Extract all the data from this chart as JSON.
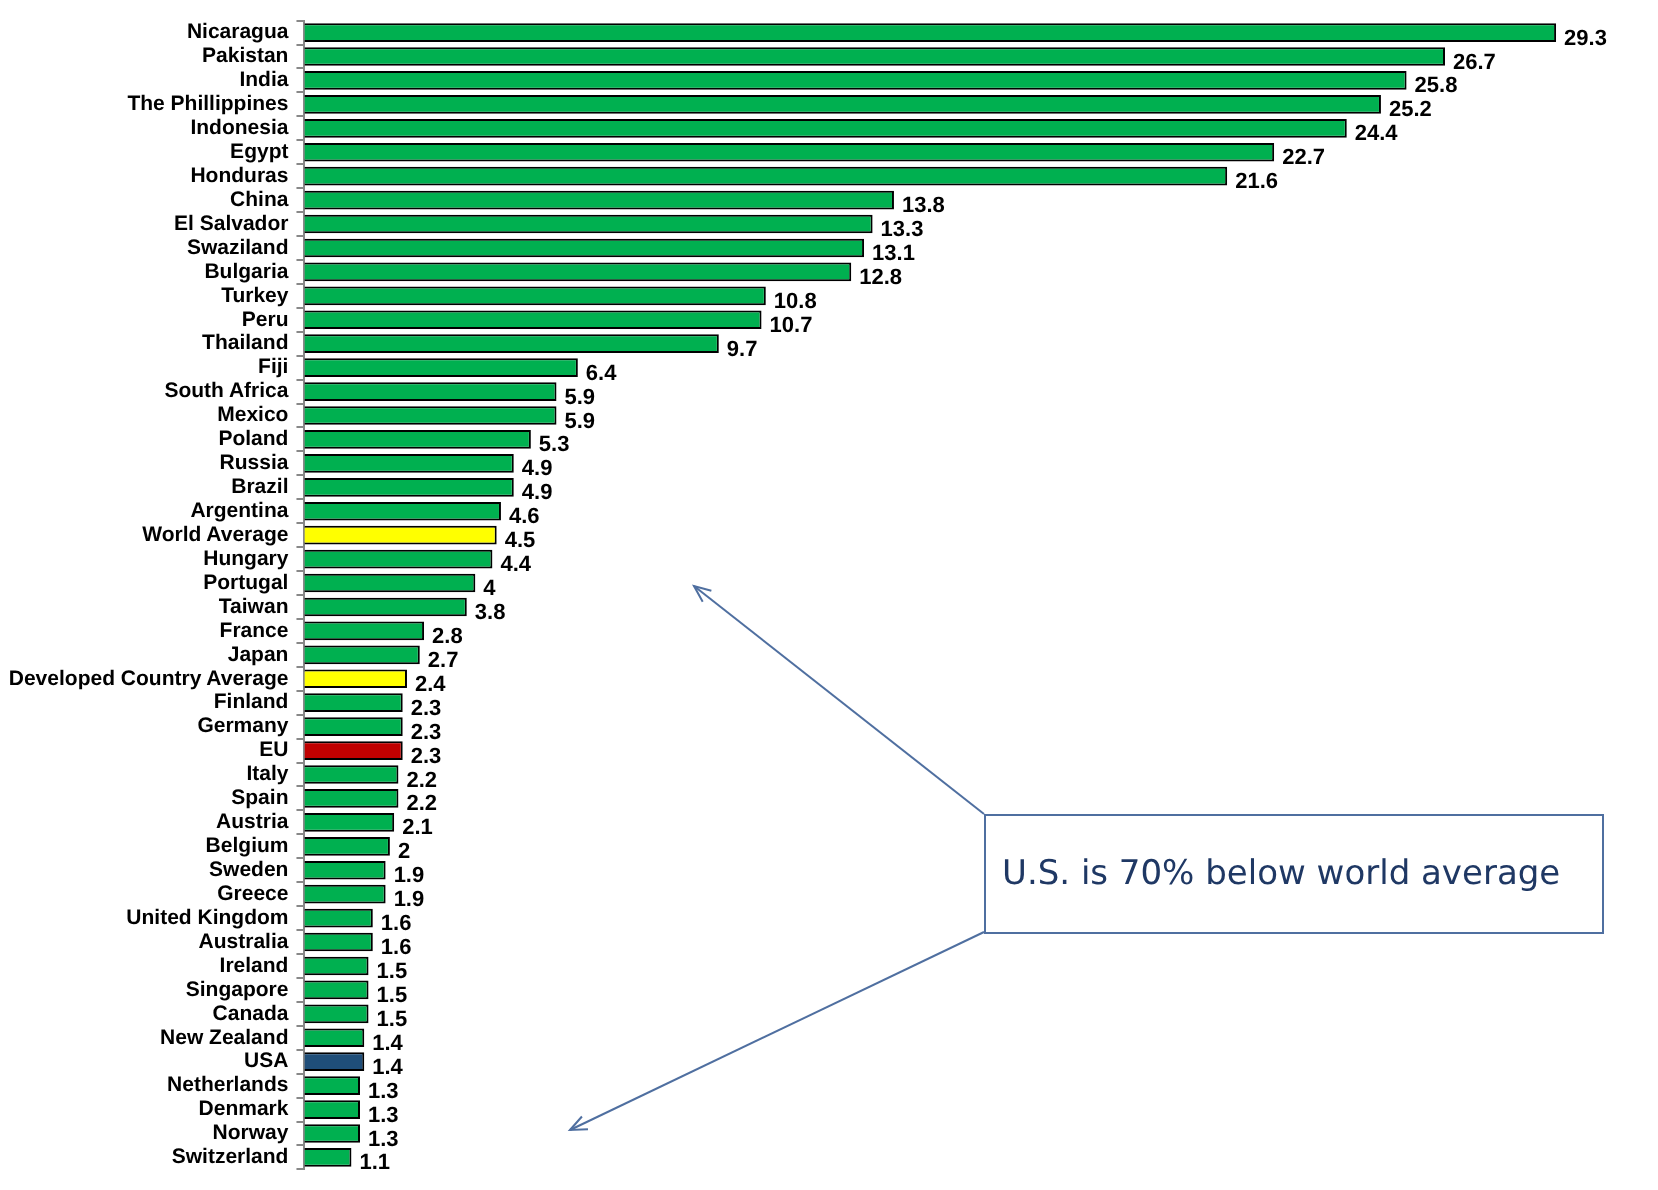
{
  "chart_data": {
    "type": "bar",
    "orientation": "horizontal",
    "categories": [
      "Nicaragua",
      "Pakistan",
      "India",
      "The Phillippines",
      "Indonesia",
      "Egypt",
      "Honduras",
      "China",
      "El Salvador",
      "Swaziland",
      "Bulgaria",
      "Turkey",
      "Peru",
      "Thailand",
      "Fiji",
      "South Africa",
      "Mexico",
      "Poland",
      "Russia",
      "Brazil",
      "Argentina",
      "World Average",
      "Hungary",
      "Portugal",
      "Taiwan",
      "France",
      "Japan",
      "Developed Country Average",
      "Finland",
      "Germany",
      "EU",
      "Italy",
      "Spain",
      "Austria",
      "Belgium",
      "Sweden",
      "Greece",
      "United Kingdom",
      "Australia",
      "Ireland",
      "Singapore",
      "Canada",
      "New Zealand",
      "USA",
      "Netherlands",
      "Denmark",
      "Norway",
      "Switzerland"
    ],
    "values": [
      29.3,
      26.7,
      25.8,
      25.2,
      24.4,
      22.7,
      21.6,
      13.8,
      13.3,
      13.1,
      12.8,
      10.8,
      10.7,
      9.7,
      6.4,
      5.9,
      5.9,
      5.3,
      4.9,
      4.9,
      4.6,
      4.5,
      4.4,
      4,
      3.8,
      2.8,
      2.7,
      2.4,
      2.3,
      2.3,
      2.3,
      2.2,
      2.2,
      2.1,
      2,
      1.9,
      1.9,
      1.6,
      1.6,
      1.5,
      1.5,
      1.5,
      1.4,
      1.4,
      1.3,
      1.3,
      1.3,
      1.1
    ],
    "colors": [
      "#00b050",
      "#00b050",
      "#00b050",
      "#00b050",
      "#00b050",
      "#00b050",
      "#00b050",
      "#00b050",
      "#00b050",
      "#00b050",
      "#00b050",
      "#00b050",
      "#00b050",
      "#00b050",
      "#00b050",
      "#00b050",
      "#00b050",
      "#00b050",
      "#00b050",
      "#00b050",
      "#00b050",
      "#ffff00",
      "#00b050",
      "#00b050",
      "#00b050",
      "#00b050",
      "#00b050",
      "#ffff00",
      "#00b050",
      "#00b050",
      "#c00000",
      "#00b050",
      "#00b050",
      "#00b050",
      "#00b050",
      "#00b050",
      "#00b050",
      "#00b050",
      "#00b050",
      "#00b050",
      "#00b050",
      "#00b050",
      "#00b050",
      "#1f4e79",
      "#00b050",
      "#00b050",
      "#00b050",
      "#00b050"
    ],
    "data_labels": true,
    "tick_labels": "y",
    "grid": false,
    "legend": false,
    "annotations": [
      "U.S. is 70% below world average"
    ]
  }
}
